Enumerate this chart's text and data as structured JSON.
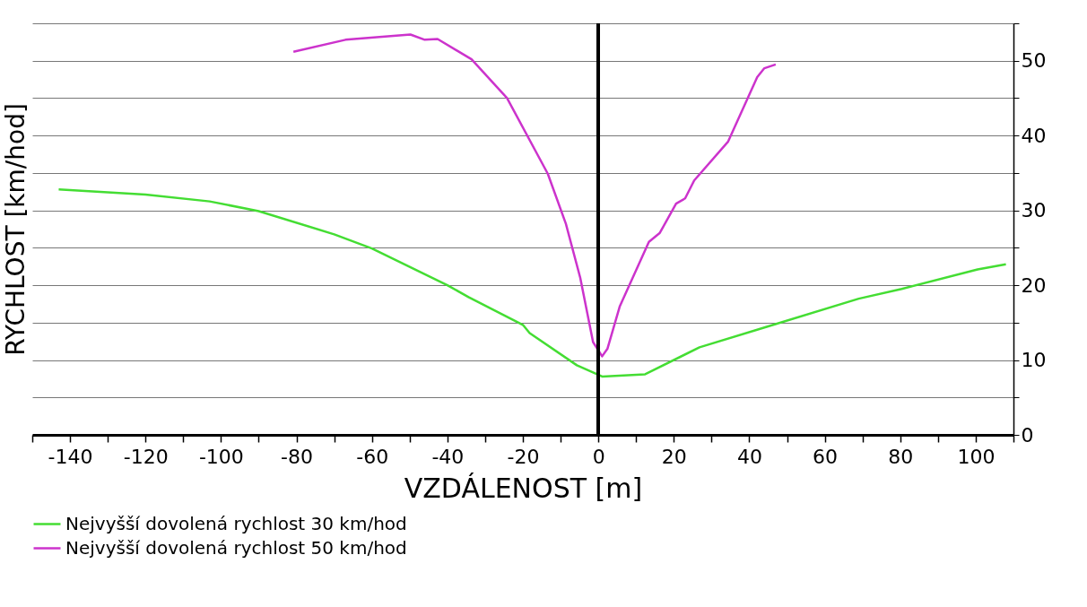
{
  "chart_data": {
    "type": "line",
    "xlabel": "VZDÁLENOST [m]",
    "ylabel": "RYCHLOST [km/hod]",
    "xlim": [
      -150,
      110
    ],
    "ylim": [
      0,
      55
    ],
    "xticks": [
      {
        "value": -150,
        "label": null
      },
      -140,
      {
        "value": -130,
        "label": null
      },
      -120,
      {
        "value": -110,
        "label": null
      },
      -100,
      {
        "value": -90,
        "label": null
      },
      -80,
      {
        "value": -70,
        "label": null
      },
      -60,
      {
        "value": -50,
        "label": null
      },
      -40,
      {
        "value": -30,
        "label": null
      },
      -20,
      {
        "value": -10,
        "label": null
      },
      0,
      {
        "value": 10,
        "label": null
      },
      20,
      {
        "value": 30,
        "label": null
      },
      40,
      {
        "value": 50,
        "label": null
      },
      60,
      {
        "value": 70,
        "label": null
      },
      80,
      {
        "value": 90,
        "label": null
      },
      100,
      {
        "value": 110,
        "label": null
      }
    ],
    "yticks": [
      0,
      {
        "value": 5,
        "label": null
      },
      10,
      {
        "value": 15,
        "label": null
      },
      20,
      {
        "value": 25,
        "label": null
      },
      30,
      {
        "value": 35,
        "label": null
      },
      40,
      {
        "value": 45,
        "label": null
      },
      50,
      {
        "value": 55,
        "label": null
      }
    ],
    "grid": "y",
    "legend": "bottom left",
    "line_style": "solid",
    "ref_lines": [
      {
        "axis": "x",
        "value": 0,
        "color": "#000000"
      }
    ],
    "series": [
      {
        "name": "Nejvyšší dovolená rychlost 30 km/hod",
        "color": "#44dd33",
        "x": [
          -143,
          -120,
          -103,
          -90,
          -70,
          -60,
          -40,
          -34.4,
          -20,
          -18.2,
          -5.7,
          1,
          12.4,
          26.8,
          45,
          69,
          80.4,
          100.5,
          108
        ],
        "values": [
          32.8,
          32.1,
          31.2,
          29.9,
          26.8,
          24.9,
          20,
          18.4,
          14.7,
          13.6,
          9.3,
          7.8,
          8.1,
          11.7,
          14.5,
          18.2,
          19.5,
          22.1,
          22.8
        ]
      },
      {
        "name": "Nejvyšší dovolená rychlost 50 km/hod",
        "color": "#cc33cc",
        "x": [
          -80.8,
          -67,
          -49.8,
          -46,
          -42.6,
          -33.6,
          -24.2,
          -13.4,
          -8.6,
          -4.8,
          -1.4,
          1,
          2.4,
          5.7,
          13.4,
          16.3,
          20.6,
          23,
          25.4,
          34.4,
          42.1,
          44,
          47
        ],
        "values": [
          51.2,
          52.8,
          53.5,
          52.8,
          52.9,
          50.2,
          45,
          34.9,
          28.2,
          21,
          12.4,
          10.5,
          11.5,
          17.2,
          25.8,
          27,
          30.9,
          31.6,
          34,
          39.2,
          47.8,
          49,
          49.5
        ]
      }
    ]
  }
}
